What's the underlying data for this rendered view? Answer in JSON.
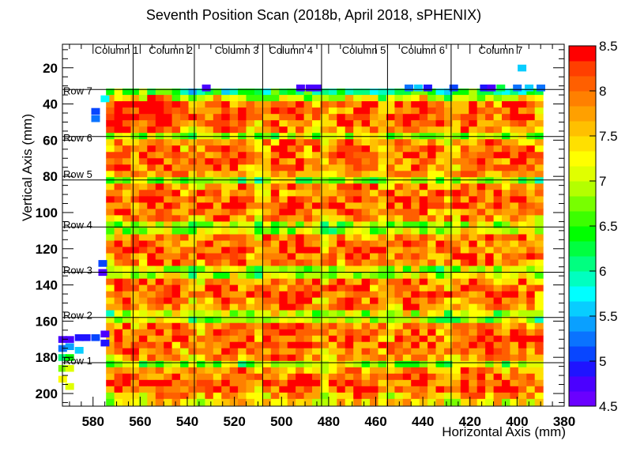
{
  "chart_data": {
    "type": "heatmap",
    "title": "Seventh Position Scan (2018b, April 2018, sPHENIX)",
    "xlabel": "Horizontal Axis (mm)",
    "ylabel": "Vertical Axis (mm)",
    "x_range": [
      380,
      593
    ],
    "x_reversed": true,
    "y_range": [
      7,
      207
    ],
    "y_reversed": true,
    "x_ticks": [
      580,
      560,
      540,
      520,
      500,
      480,
      460,
      440,
      420,
      400,
      380
    ],
    "y_ticks": [
      20,
      40,
      60,
      80,
      100,
      120,
      140,
      160,
      180,
      200
    ],
    "z_range": [
      4.5,
      8.5
    ],
    "colorbar_ticks": [
      "4.5",
      "5",
      "5.5",
      "6",
      "6.5",
      "7",
      "7.5",
      "8",
      "8.5"
    ],
    "palette": [
      "#6a00ff",
      "#4b00ff",
      "#1f14ff",
      "#0846ff",
      "#0a73ff",
      "#0aa0ff",
      "#08cdff",
      "#00ffff",
      "#00ffc0",
      "#00ff80",
      "#00ff40",
      "#00ff00",
      "#3cff00",
      "#78ff00",
      "#b4ff00",
      "#e0ff00",
      "#ffff00",
      "#ffe000",
      "#ffc000",
      "#ffa000",
      "#ff8000",
      "#ff5f00",
      "#ff3f00",
      "#ff0000"
    ],
    "grid": {
      "x0": 592,
      "y0": 7,
      "dx": 3.5,
      "dy": 3.5,
      "cols": 60,
      "rows": 57,
      "z": [
        "",
        "",
        "",
        "",
        "",
        "",
        "",
        "",
        "",
        "",
        "",
        "",
        "________________________________________________________a___",
        "",
        "",
        "__________________________________________bb_____bbbbb_aa___",
        "",
        "______________________________________________________a_____",
        "",
        "",
        "",
        "",
        "",
        "",
        "",
        "",
        "",
        "",
        "",
        "",
        "",
        "",
        "",
        "",
        "",
        "",
        "",
        "",
        "",
        "",
        "",
        "",
        "",
        "",
        "",
        "",
        "",
        "",
        "",
        "",
        "",
        "",
        "",
        "",
        "",
        "",
        ""
      ]
    },
    "column_labels": [
      {
        "text": "Column 1",
        "x": 570
      },
      {
        "text": "Column 2",
        "x": 547
      },
      {
        "text": "Column 3",
        "x": 519
      },
      {
        "text": "Column 4",
        "x": 496
      },
      {
        "text": "Column 5",
        "x": 465
      },
      {
        "text": "Column 6",
        "x": 440
      },
      {
        "text": "Column 7",
        "x": 407
      }
    ],
    "row_labels": [
      {
        "text": "Row 7",
        "y": 33
      },
      {
        "text": "Row 6",
        "y": 59
      },
      {
        "text": "Row 5",
        "y": 79
      },
      {
        "text": "Row 4",
        "y": 107
      },
      {
        "text": "Row 3",
        "y": 132
      },
      {
        "text": "Row 2",
        "y": 157
      },
      {
        "text": "Row 1",
        "y": 182
      }
    ],
    "column_lines_x": [
      563,
      537,
      508,
      483,
      455,
      428
    ],
    "row_lines_y": [
      32,
      58,
      82,
      108,
      133,
      158,
      183
    ]
  }
}
